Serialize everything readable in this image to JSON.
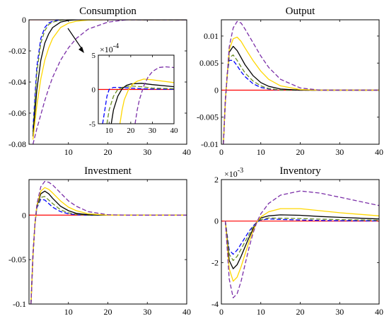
{
  "chart_data": [
    {
      "type": "line",
      "title": "Consumption",
      "xlim": [
        0,
        40
      ],
      "ylim": [
        -0.08,
        0
      ],
      "xticks": [
        "10",
        "20",
        "30",
        "40"
      ],
      "yticks": [
        "0",
        "-0.02",
        "-0.04",
        "-0.06",
        "-0.08"
      ],
      "series_styles": [
        {
          "color": "#0000ff",
          "dash": true
        },
        {
          "color": "#6b8e23",
          "dash": true
        },
        {
          "color": "#000000",
          "dash": false
        },
        {
          "color": "#ffd700",
          "dash": false
        },
        {
          "color": "#7b2fa8",
          "dash": true
        }
      ],
      "zero_line_color": "#ff0000",
      "series": [
        {
          "x": [
            1,
            2,
            3,
            4,
            5,
            6,
            8,
            10,
            12,
            15,
            20,
            25,
            30,
            40
          ],
          "values": [
            -0.07,
            -0.03,
            -0.012,
            -0.005,
            -0.002,
            -0.001,
            0,
            0,
            0,
            0,
            0,
            0,
            0,
            0
          ]
        },
        {
          "x": [
            1,
            2,
            3,
            4,
            5,
            6,
            8,
            10,
            12,
            15,
            20,
            25,
            30,
            40
          ],
          "values": [
            -0.072,
            -0.034,
            -0.015,
            -0.007,
            -0.003,
            -0.0015,
            -0.0003,
            0,
            0,
            0,
            0,
            0,
            0,
            0
          ]
        },
        {
          "x": [
            1,
            2,
            3,
            4,
            5,
            6,
            8,
            10,
            12,
            15,
            20,
            25,
            30,
            40
          ],
          "values": [
            -0.075,
            -0.045,
            -0.026,
            -0.015,
            -0.009,
            -0.005,
            -0.0015,
            -0.0004,
            0,
            0.0001,
            0.0001,
            5e-05,
            0,
            0
          ]
        },
        {
          "x": [
            1,
            2,
            3,
            4,
            5,
            6,
            8,
            10,
            12,
            15,
            20,
            25,
            30,
            40
          ],
          "values": [
            -0.077,
            -0.055,
            -0.038,
            -0.026,
            -0.018,
            -0.012,
            -0.005,
            -0.0022,
            -0.0009,
            -0.0002,
            0.0001,
            0.0001,
            8e-05,
            4e-05
          ]
        },
        {
          "x": [
            1,
            2,
            3,
            4,
            5,
            6,
            8,
            10,
            12,
            15,
            20,
            25,
            30,
            40
          ],
          "values": [
            -0.08,
            -0.07,
            -0.061,
            -0.052,
            -0.044,
            -0.037,
            -0.026,
            -0.018,
            -0.012,
            -0.006,
            -0.0015,
            0.0001,
            0.00025,
            0.0002
          ]
        }
      ],
      "inset": {
        "xlim": [
          5,
          40
        ],
        "ylim": [
          -5,
          5
        ],
        "xticks": [
          "10",
          "20",
          "30",
          "40"
        ],
        "yticks": [
          "5",
          "0",
          "-5"
        ],
        "exponent": "-4",
        "series": [
          {
            "x": [
              7,
              8,
              9,
              10,
              12,
              15,
              20,
              25,
              30,
              40
            ],
            "values": [
              -5,
              -3,
              -1,
              0,
              0.3,
              0.3,
              0.2,
              0.1,
              0.05,
              0.02
            ]
          },
          {
            "x": [
              9,
              10,
              12,
              14,
              17,
              20,
              25,
              30,
              40
            ],
            "values": [
              -5,
              -3,
              -1,
              0,
              0.4,
              0.5,
              0.4,
              0.2,
              0.1
            ]
          },
          {
            "x": [
              11,
              12,
              14,
              16,
              18,
              20,
              25,
              30,
              40
            ],
            "values": [
              -5,
              -3,
              -1,
              0.1,
              0.6,
              0.8,
              0.9,
              0.7,
              0.4
            ]
          },
          {
            "x": [
              15,
              16,
              17,
              19,
              21,
              23,
              26,
              30,
              35,
              40
            ],
            "values": [
              -5,
              -3,
              -1.5,
              0,
              0.8,
              1.2,
              1.5,
              1.4,
              1.2,
              1.0
            ]
          },
          {
            "x": [
              22,
              23,
              24,
              26,
              28,
              30,
              33,
              36,
              40
            ],
            "values": [
              -5,
              -3,
              -1.5,
              0.5,
              1.8,
              2.6,
              3.2,
              3.3,
              3.2
            ]
          }
        ]
      }
    },
    {
      "type": "line",
      "title": "Output",
      "xlim": [
        0,
        40
      ],
      "ylim": [
        -0.01,
        0.013
      ],
      "xticks": [
        "0",
        "10",
        "20",
        "30",
        "40"
      ],
      "yticks": [
        "0.01",
        "0.005",
        "0",
        "-0.005",
        "-0.01"
      ],
      "series": [
        {
          "x": [
            0.5,
            1,
            1.5,
            2,
            3,
            4,
            5,
            6,
            8,
            10,
            12,
            15,
            20,
            25,
            30,
            40
          ],
          "values": [
            -0.01,
            -0.002,
            0.003,
            0.0055,
            0.0055,
            0.0045,
            0.0034,
            0.0025,
            0.0012,
            0.0005,
            0.0002,
            0,
            0,
            0,
            0,
            0
          ]
        },
        {
          "x": [
            0.5,
            1,
            1.5,
            2,
            3,
            4,
            5,
            6,
            8,
            10,
            12,
            15,
            20,
            25,
            30,
            40
          ],
          "values": [
            -0.01,
            -0.002,
            0.003,
            0.006,
            0.0065,
            0.0055,
            0.0043,
            0.0032,
            0.0017,
            0.0008,
            0.0003,
            0,
            0,
            0,
            0,
            0
          ]
        },
        {
          "x": [
            0.5,
            1,
            1.5,
            2,
            3,
            4,
            5,
            6,
            8,
            10,
            12,
            15,
            20,
            25,
            30,
            40
          ],
          "values": [
            -0.01,
            -0.002,
            0.003,
            0.007,
            0.0081,
            0.0073,
            0.006,
            0.0047,
            0.0027,
            0.0014,
            0.0007,
            0.0002,
            0,
            0,
            0,
            0
          ]
        },
        {
          "x": [
            0.5,
            1,
            1.5,
            2,
            3,
            4,
            5,
            6,
            8,
            10,
            12,
            15,
            20,
            25,
            30,
            40
          ],
          "values": [
            -0.01,
            -0.002,
            0.003,
            0.0075,
            0.0095,
            0.0098,
            0.009,
            0.0078,
            0.0055,
            0.0035,
            0.002,
            0.0008,
            0.0001,
            0,
            0,
            0
          ]
        },
        {
          "x": [
            0.5,
            1,
            1.5,
            2,
            3,
            4,
            5,
            6,
            8,
            10,
            12,
            15,
            20,
            25,
            30,
            40
          ],
          "values": [
            -0.01,
            -0.002,
            0.003,
            0.008,
            0.0115,
            0.0127,
            0.0124,
            0.0113,
            0.0088,
            0.0063,
            0.0042,
            0.002,
            0.0004,
            0,
            0,
            0
          ]
        }
      ]
    },
    {
      "type": "line",
      "title": "Investment",
      "xlim": [
        0,
        40
      ],
      "ylim": [
        -0.1,
        0.04
      ],
      "xticks": [
        "10",
        "20",
        "30",
        "40"
      ],
      "yticks": [
        "0",
        "-0.05",
        "-0.1"
      ],
      "series": [
        {
          "x": [
            0.5,
            1,
            1.5,
            2,
            3,
            4,
            5,
            6,
            8,
            10,
            12,
            15,
            20,
            25,
            30,
            40
          ],
          "values": [
            -0.1,
            -0.045,
            -0.01,
            0.008,
            0.018,
            0.017,
            0.013,
            0.009,
            0.004,
            0.0015,
            0.0005,
            0,
            0,
            0,
            0,
            0
          ]
        },
        {
          "x": [
            0.5,
            1,
            1.5,
            2,
            3,
            4,
            5,
            6,
            8,
            10,
            12,
            15,
            20,
            25,
            30,
            40
          ],
          "values": [
            -0.1,
            -0.045,
            -0.01,
            0.009,
            0.02,
            0.021,
            0.017,
            0.013,
            0.006,
            0.0025,
            0.001,
            0,
            0,
            0,
            0,
            0
          ]
        },
        {
          "x": [
            0.5,
            1,
            1.5,
            2,
            3,
            4,
            5,
            6,
            8,
            10,
            12,
            15,
            20,
            25,
            30,
            40
          ],
          "values": [
            -0.1,
            -0.045,
            -0.01,
            0.01,
            0.024,
            0.027,
            0.024,
            0.019,
            0.01,
            0.005,
            0.002,
            0.0005,
            0,
            0,
            0,
            0
          ]
        },
        {
          "x": [
            0.5,
            1,
            1.5,
            2,
            3,
            4,
            5,
            6,
            8,
            10,
            12,
            15,
            20,
            25,
            30,
            40
          ],
          "values": [
            -0.1,
            -0.045,
            -0.01,
            0.011,
            0.027,
            0.031,
            0.029,
            0.025,
            0.016,
            0.009,
            0.005,
            0.0015,
            0,
            0,
            0,
            0
          ]
        },
        {
          "x": [
            0.5,
            1,
            1.5,
            2,
            3,
            4,
            5,
            6,
            8,
            10,
            12,
            15,
            20,
            25,
            30,
            40
          ],
          "values": [
            -0.1,
            -0.045,
            -0.01,
            0.012,
            0.032,
            0.038,
            0.037,
            0.034,
            0.025,
            0.016,
            0.01,
            0.004,
            0.0005,
            0,
            0,
            0
          ]
        }
      ]
    },
    {
      "type": "line",
      "title": "Inventory",
      "xlim": [
        0,
        40
      ],
      "ylim": [
        -4,
        2
      ],
      "xticks": [
        "0",
        "10",
        "20",
        "30",
        "40"
      ],
      "yticks": [
        "2",
        "0",
        "-2",
        "-4"
      ],
      "exponent": "-3",
      "series": [
        {
          "x": [
            1,
            2,
            3,
            4,
            5,
            6,
            7,
            8,
            9,
            10,
            12,
            15,
            20,
            25,
            30,
            40
          ],
          "values": [
            0,
            -1.4,
            -1.6,
            -1.4,
            -1.1,
            -0.8,
            -0.5,
            -0.25,
            -0.05,
            0.05,
            0.1,
            0.08,
            0.05,
            0.03,
            0.02,
            0.01
          ]
        },
        {
          "x": [
            1,
            2,
            3,
            4,
            5,
            6,
            7,
            8,
            9,
            10,
            12,
            15,
            20,
            25,
            30,
            40
          ],
          "values": [
            0,
            -1.6,
            -1.9,
            -1.7,
            -1.35,
            -1.0,
            -0.65,
            -0.3,
            -0.05,
            0.07,
            0.15,
            0.14,
            0.12,
            0.09,
            0.07,
            0.04
          ]
        },
        {
          "x": [
            1,
            2,
            3,
            4,
            5,
            6,
            7,
            8,
            9,
            10,
            12,
            15,
            20,
            25,
            30,
            40
          ],
          "values": [
            0,
            -1.9,
            -2.3,
            -2.1,
            -1.7,
            -1.25,
            -0.8,
            -0.4,
            -0.05,
            0.15,
            0.25,
            0.3,
            0.28,
            0.22,
            0.18,
            0.1
          ]
        },
        {
          "x": [
            1,
            2,
            3,
            4,
            5,
            6,
            7,
            8,
            9,
            10,
            12,
            15,
            20,
            25,
            30,
            40
          ],
          "values": [
            0,
            -2.3,
            -2.9,
            -2.7,
            -2.2,
            -1.6,
            -1.0,
            -0.5,
            -0.05,
            0.2,
            0.45,
            0.6,
            0.6,
            0.5,
            0.4,
            0.25
          ]
        },
        {
          "x": [
            1,
            2,
            3,
            4,
            5,
            6,
            7,
            8,
            9,
            10,
            12,
            15,
            20,
            25,
            30,
            40
          ],
          "values": [
            0,
            -2.8,
            -3.7,
            -3.5,
            -2.9,
            -2.1,
            -1.3,
            -0.6,
            -0.05,
            0.35,
            0.85,
            1.25,
            1.45,
            1.35,
            1.15,
            0.75
          ]
        }
      ]
    }
  ]
}
